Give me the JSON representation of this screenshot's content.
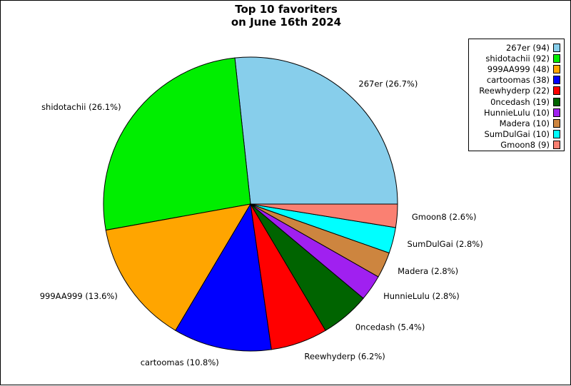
{
  "chart_data": {
    "type": "pie",
    "title_lines": [
      "Top 10 favoriters",
      "on June 16th 2024"
    ],
    "slices": [
      {
        "label": "267er",
        "value": 94,
        "percent_label": "267er (26.7%)",
        "legend_label": "267er (94)",
        "color": "#87ceeb"
      },
      {
        "label": "shidotachii",
        "value": 92,
        "percent_label": "shidotachii (26.1%)",
        "legend_label": "shidotachii (92)",
        "color": "#00ee00"
      },
      {
        "label": "999AA999",
        "value": 48,
        "percent_label": "999AA999 (13.6%)",
        "legend_label": "999AA999 (48)",
        "color": "#ffa500"
      },
      {
        "label": "cartoomas",
        "value": 38,
        "percent_label": "cartoomas (10.8%)",
        "legend_label": "cartoomas (38)",
        "color": "#0000ff"
      },
      {
        "label": "Reewhyderp",
        "value": 22,
        "percent_label": "Reewhyderp (6.2%)",
        "legend_label": "Reewhyderp (22)",
        "color": "#ff0000"
      },
      {
        "label": "0ncedash",
        "value": 19,
        "percent_label": "0ncedash (5.4%)",
        "legend_label": "0ncedash (19)",
        "color": "#006400"
      },
      {
        "label": "HunnieLulu",
        "value": 10,
        "percent_label": "HunnieLulu (2.8%)",
        "legend_label": "HunnieLulu (10)",
        "color": "#a020f0"
      },
      {
        "label": "Madera",
        "value": 10,
        "percent_label": "Madera (2.8%)",
        "legend_label": "Madera (10)",
        "color": "#cd853f"
      },
      {
        "label": "SumDulGai",
        "value": 10,
        "percent_label": "SumDulGai (2.8%)",
        "legend_label": "SumDulGai (10)",
        "color": "#00ffff"
      },
      {
        "label": "Gmoon8",
        "value": 9,
        "percent_label": "Gmoon8 (2.6%)",
        "legend_label": "Gmoon8 (9)",
        "color": "#fa8072"
      }
    ],
    "start_angle_deg": 0,
    "direction": "counterclockwise",
    "legend_position": "top-right"
  }
}
